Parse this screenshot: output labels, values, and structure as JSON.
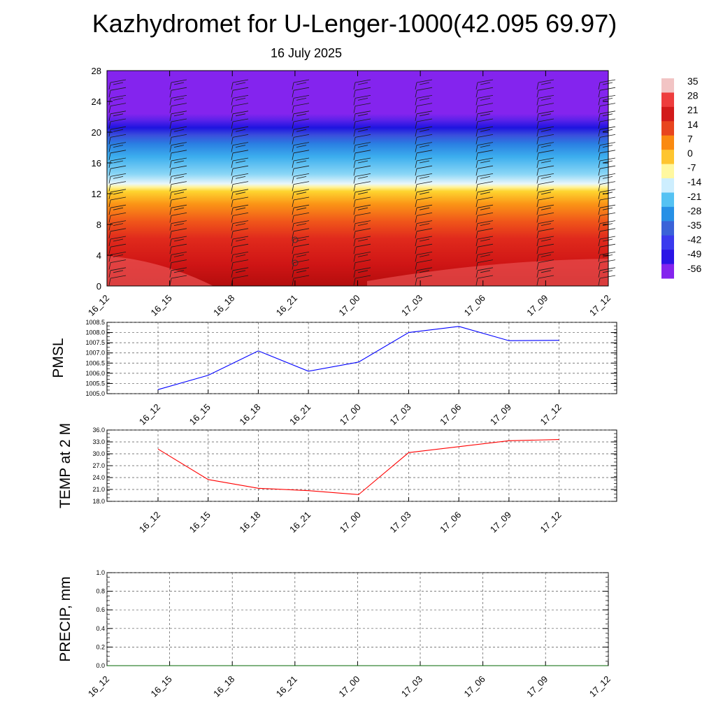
{
  "title": "Kazhydromet for U-Lenger-1000(42.095 69.97)",
  "subtitle": "16 July 2025",
  "chart_data": [
    {
      "type": "heatmap",
      "x": [
        "16_12",
        "16_15",
        "16_18",
        "16_21",
        "17_00",
        "17_03",
        "17_06",
        "17_09",
        "17_12"
      ],
      "y_ticks": [
        "0",
        "4",
        "8",
        "12",
        "16",
        "20",
        "24",
        "28"
      ],
      "ylim": [
        0,
        28
      ],
      "colorbar": {
        "labels": [
          "35",
          "28",
          "21",
          "14",
          "7",
          "0",
          "-7",
          "-14",
          "-21",
          "-28",
          "-35",
          "-42",
          "-49",
          "-56"
        ],
        "colors": [
          "#f2c4c4",
          "#ee3d3d",
          "#d21a1a",
          "#e8451e",
          "#fa8a10",
          "#fec530",
          "#fff8a0",
          "#cdeefe",
          "#55c2f3",
          "#2790e6",
          "#3a62d8",
          "#3a3aee",
          "#2a14e6",
          "#8424ee"
        ]
      },
      "wind_barbs": true
    },
    {
      "type": "line",
      "ylabel": "PMSL",
      "x": [
        "16_12",
        "16_15",
        "16_18",
        "16_21",
        "17_00",
        "17_03",
        "17_06",
        "17_09",
        "17_12"
      ],
      "y_ticks": [
        "1005.0",
        "1005.5",
        "1006.0",
        "1006.5",
        "1007.0",
        "1007.5",
        "1008.0",
        "1008.5"
      ],
      "ylim": [
        1005.0,
        1008.5
      ],
      "series": [
        {
          "values": [
            1005.2,
            1005.9,
            1007.1,
            1006.1,
            1006.55,
            1008.0,
            1008.3,
            1007.6,
            1007.62
          ],
          "color": "#0000ff"
        }
      ],
      "grid": true
    },
    {
      "type": "line",
      "ylabel": "TEMP at 2 M",
      "x": [
        "16_12",
        "16_15",
        "16_18",
        "16_21",
        "17_00",
        "17_03",
        "17_06",
        "17_09",
        "17_12"
      ],
      "y_ticks": [
        "18.0",
        "21.0",
        "24.0",
        "27.0",
        "30.0",
        "33.0",
        "36.0"
      ],
      "ylim": [
        18.0,
        36.0
      ],
      "series": [
        {
          "values": [
            31.2,
            23.5,
            21.3,
            20.7,
            19.7,
            30.3,
            31.8,
            33.3,
            33.6
          ],
          "color": "#ff0000"
        }
      ],
      "grid": true
    },
    {
      "type": "line",
      "ylabel": "PRECIP, mm",
      "x": [
        "16_12",
        "16_15",
        "16_18",
        "16_21",
        "17_00",
        "17_03",
        "17_06",
        "17_09",
        "17_12"
      ],
      "y_ticks": [
        "0.0",
        "0.2",
        "0.4",
        "0.6",
        "0.8",
        "1.0"
      ],
      "ylim": [
        0.0,
        1.0
      ],
      "series": [
        {
          "values": [
            0,
            0,
            0,
            0,
            0,
            0,
            0,
            0,
            0
          ],
          "color": "#006400"
        }
      ],
      "grid": true
    }
  ]
}
